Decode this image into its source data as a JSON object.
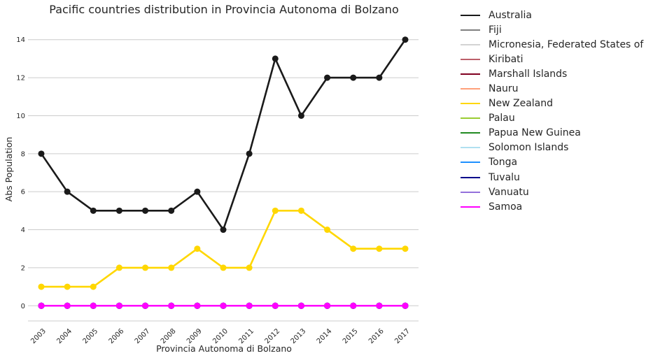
{
  "chart_data": {
    "type": "line",
    "title": "Pacific countries distribution in Provincia Autonoma di Bolzano",
    "xlabel": "Provincia Autonoma di Bolzano",
    "ylabel": "Abs Population",
    "x": [
      "2003",
      "2004",
      "2005",
      "2006",
      "2007",
      "2008",
      "2009",
      "2010",
      "2011",
      "2012",
      "2013",
      "2014",
      "2015",
      "2016",
      "2017"
    ],
    "ylim": [
      -0.8,
      14.8
    ],
    "yticks": [
      "0",
      "2",
      "4",
      "6",
      "8",
      "10",
      "12",
      "14"
    ],
    "grid": true,
    "legend_position": "outside-right",
    "series": [
      {
        "name": "Australia",
        "color": "#1a1a1a",
        "values": [
          8,
          6,
          5,
          5,
          5,
          5,
          6,
          4,
          8,
          13,
          10,
          12,
          12,
          12,
          14
        ]
      },
      {
        "name": "Fiji",
        "color": "#808080",
        "values": [
          0,
          0,
          0,
          0,
          0,
          0,
          0,
          0,
          0,
          0,
          0,
          0,
          0,
          0,
          0
        ]
      },
      {
        "name": "Micronesia, Federated States of",
        "color": "#d3d3d3",
        "values": [
          0,
          0,
          0,
          0,
          0,
          0,
          0,
          0,
          0,
          0,
          0,
          0,
          0,
          0,
          0
        ]
      },
      {
        "name": "Kiribati",
        "color": "#bc5f6a",
        "values": [
          0,
          0,
          0,
          0,
          0,
          0,
          0,
          0,
          0,
          0,
          0,
          0,
          0,
          0,
          0
        ]
      },
      {
        "name": "Marshall Islands",
        "color": "#800020",
        "values": [
          0,
          0,
          0,
          0,
          0,
          0,
          0,
          0,
          0,
          0,
          0,
          0,
          0,
          0,
          0
        ]
      },
      {
        "name": "Nauru",
        "color": "#ffa07a",
        "values": [
          0,
          0,
          0,
          0,
          0,
          0,
          0,
          0,
          0,
          0,
          0,
          0,
          0,
          0,
          0
        ]
      },
      {
        "name": "New Zealand",
        "color": "#ffd700",
        "values": [
          1,
          1,
          1,
          2,
          2,
          2,
          3,
          2,
          2,
          5,
          5,
          4,
          3,
          3,
          3
        ]
      },
      {
        "name": "Palau",
        "color": "#9acd32",
        "values": [
          0,
          0,
          0,
          0,
          0,
          0,
          0,
          0,
          0,
          0,
          0,
          0,
          0,
          0,
          0
        ]
      },
      {
        "name": "Papua New Guinea",
        "color": "#228b22",
        "values": [
          0,
          0,
          0,
          0,
          0,
          0,
          0,
          0,
          0,
          0,
          0,
          0,
          0,
          0,
          0
        ]
      },
      {
        "name": "Solomon Islands",
        "color": "#b0e0f0",
        "values": [
          0,
          0,
          0,
          0,
          0,
          0,
          0,
          0,
          0,
          0,
          0,
          0,
          0,
          0,
          0
        ]
      },
      {
        "name": "Tonga",
        "color": "#1e90ff",
        "values": [
          0,
          0,
          0,
          0,
          0,
          0,
          0,
          0,
          0,
          0,
          0,
          0,
          0,
          0,
          0
        ]
      },
      {
        "name": "Tuvalu",
        "color": "#00008b",
        "values": [
          0,
          0,
          0,
          0,
          0,
          0,
          0,
          0,
          0,
          0,
          0,
          0,
          0,
          0,
          0
        ]
      },
      {
        "name": "Vanuatu",
        "color": "#9370db",
        "values": [
          0,
          0,
          0,
          0,
          0,
          0,
          0,
          0,
          0,
          0,
          0,
          0,
          0,
          0,
          0
        ]
      },
      {
        "name": "Samoa",
        "color": "#ff00ff",
        "values": [
          0,
          0,
          0,
          0,
          0,
          0,
          0,
          0,
          0,
          0,
          0,
          0,
          0,
          0,
          0
        ]
      }
    ]
  }
}
